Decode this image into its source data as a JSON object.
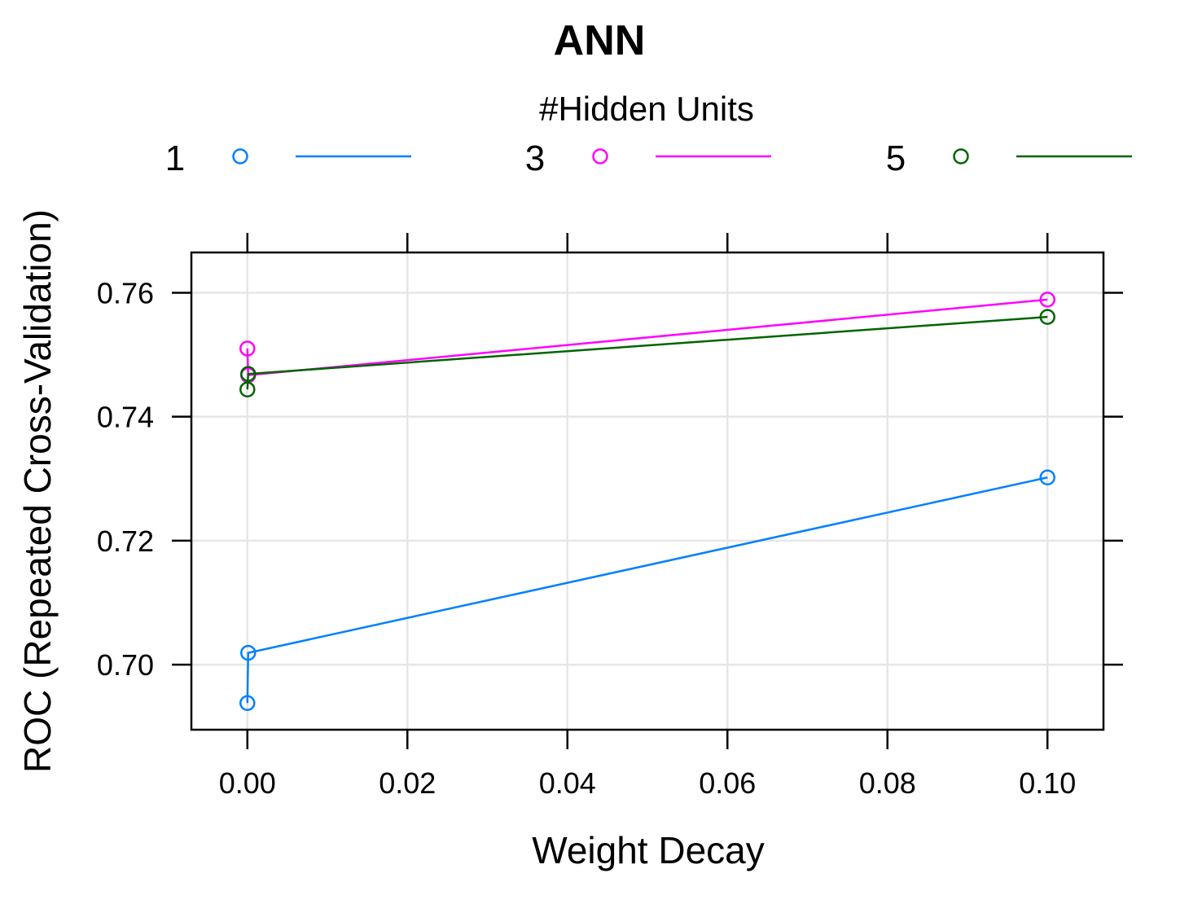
{
  "chart_data": {
    "type": "line",
    "title": "ANN",
    "xlabel": "Weight Decay",
    "ylabel": "ROC (Repeated Cross-Validation)",
    "legend_title": "#Hidden Units",
    "legend_position": "top",
    "grid": true,
    "xlim": [
      -0.007,
      0.107
    ],
    "ylim": [
      0.6895,
      0.7665
    ],
    "x_ticks": [
      "0.00",
      "0.02",
      "0.04",
      "0.06",
      "0.08",
      "0.10"
    ],
    "x_tick_values": [
      0,
      0.02,
      0.04,
      0.06,
      0.08,
      0.1
    ],
    "y_ticks": [
      "0.70",
      "0.72",
      "0.74",
      "0.76"
    ],
    "y_tick_values": [
      0.7,
      0.72,
      0.74,
      0.76
    ],
    "series": [
      {
        "name": "1",
        "color": "#0080ff",
        "x": [
          0,
          0.0001,
          0.1
        ],
        "values": [
          0.6938,
          0.7019,
          0.7302
        ]
      },
      {
        "name": "3",
        "color": "#ff00ff",
        "x": [
          0,
          0.0001,
          0.1
        ],
        "values": [
          0.751,
          0.7467,
          0.7589
        ]
      },
      {
        "name": "5",
        "color": "#006400",
        "x": [
          0,
          0.0001,
          0.1
        ],
        "values": [
          0.7444,
          0.7469,
          0.7561
        ]
      }
    ]
  }
}
